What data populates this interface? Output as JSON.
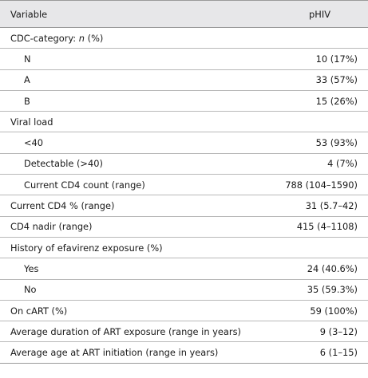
{
  "header": {
    "variable": "Variable",
    "value": "pHIV"
  },
  "rows": [
    {
      "label_pre": "CDC-category: ",
      "label_italic": "n",
      "label_post": " (%)",
      "value": "",
      "indent": false
    },
    {
      "label": "N",
      "value": "10 (17%)",
      "indent": true
    },
    {
      "label": "A",
      "value": "33 (57%)",
      "indent": true
    },
    {
      "label": "B",
      "value": "15 (26%)",
      "indent": true
    },
    {
      "label": "Viral load",
      "value": "",
      "indent": false
    },
    {
      "label": "<40",
      "value": "53 (93%)",
      "indent": true
    },
    {
      "label": "Detectable (>40)",
      "value": "4 (7%)",
      "indent": true
    },
    {
      "label": "Current CD4 count (range)",
      "value": "788 (104–1590)",
      "indent": true
    },
    {
      "label": "Current CD4 % (range)",
      "value": "31 (5.7–42)",
      "indent": false
    },
    {
      "label": "CD4 nadir (range)",
      "value": "415 (4–1108)",
      "indent": false
    },
    {
      "label": "History of efavirenz exposure (%)",
      "value": "",
      "indent": false
    },
    {
      "label": "Yes",
      "value": "24 (40.6%)",
      "indent": true
    },
    {
      "label": "No",
      "value": "35 (59.3%)",
      "indent": true
    },
    {
      "label": "On cART (%)",
      "value": "59 (100%)",
      "indent": false
    },
    {
      "label": "Average duration of ART exposure (range in years)",
      "value": "9 (3–12)",
      "indent": false
    },
    {
      "label": "Average age at ART initiation (range in years)",
      "value": "6 (1–15)",
      "indent": false
    }
  ]
}
